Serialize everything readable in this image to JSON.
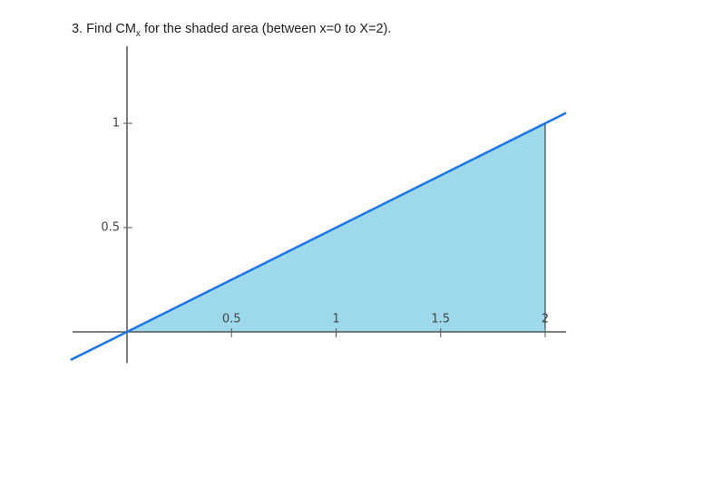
{
  "chart_data": {
    "type": "line",
    "title": [
      "3. Find CM",
      "x",
      " for the shaded area (between x=0 to X=2)."
    ],
    "series": [
      {
        "color": "#1a73e8",
        "x": [
          -0.27,
          2.1
        ],
        "values": [
          -0.135,
          1.05
        ]
      }
    ],
    "shade": {
      "color": "#9dd9ea",
      "x": [
        0,
        2,
        2
      ],
      "values": [
        0,
        1,
        0
      ]
    },
    "xlim": [
      -0.26,
      2.1
    ],
    "ylim": [
      -0.15,
      1.37
    ],
    "xticks": [
      0.5,
      1,
      1.5,
      2
    ],
    "yticks": [
      0.5,
      1
    ]
  }
}
